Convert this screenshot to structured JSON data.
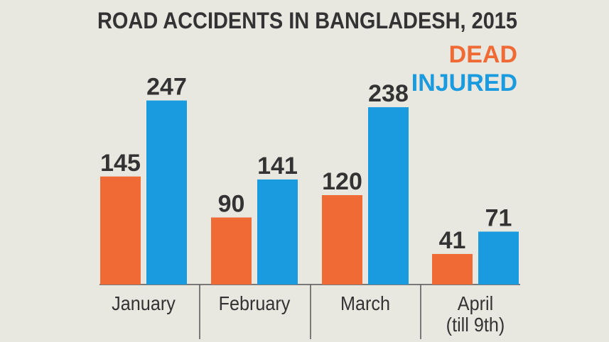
{
  "chart_data": {
    "type": "bar",
    "title": "ROAD ACCIDENTS IN BANGLADESH, 2015",
    "categories": [
      "January",
      "February",
      "March",
      "April\n(till 9th)"
    ],
    "series": [
      {
        "name": "DEAD",
        "color": "#f06a35",
        "values": [
          145,
          90,
          120,
          41
        ]
      },
      {
        "name": "INJURED",
        "color": "#1a9be0",
        "values": [
          247,
          141,
          238,
          71
        ]
      }
    ],
    "legend": "top-right"
  }
}
